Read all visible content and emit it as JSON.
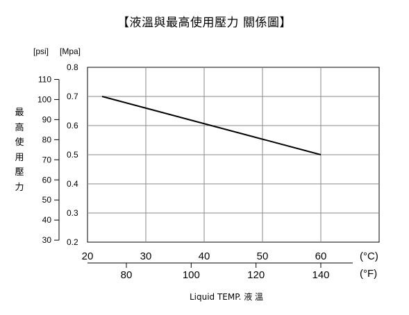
{
  "chart_data": {
    "type": "line",
    "title": "【液溫與最高使用壓力 關係圖】",
    "ylabel": "最高使用壓力",
    "xlabel": "Liquid TEMP. 液 溫",
    "y_units": {
      "primary": "[Mpa]",
      "secondary": "[psi]"
    },
    "x_units": {
      "primary": "(°C)",
      "secondary": "(°F)"
    },
    "ylim": [
      0.2,
      0.8
    ],
    "xlim": [
      20,
      70
    ],
    "y_ticks": [
      0.2,
      0.3,
      0.4,
      0.5,
      0.6,
      0.7,
      0.8
    ],
    "y_secondary_ticks": [
      30,
      40,
      50,
      60,
      70,
      80,
      90,
      100,
      110
    ],
    "x_ticks": [
      20,
      30,
      40,
      50,
      60
    ],
    "x_secondary_ticks": [
      80,
      100,
      120,
      140
    ],
    "grid": true,
    "series": [
      {
        "x": [
          22.5,
          60
        ],
        "y": [
          0.7,
          0.5
        ]
      }
    ]
  }
}
